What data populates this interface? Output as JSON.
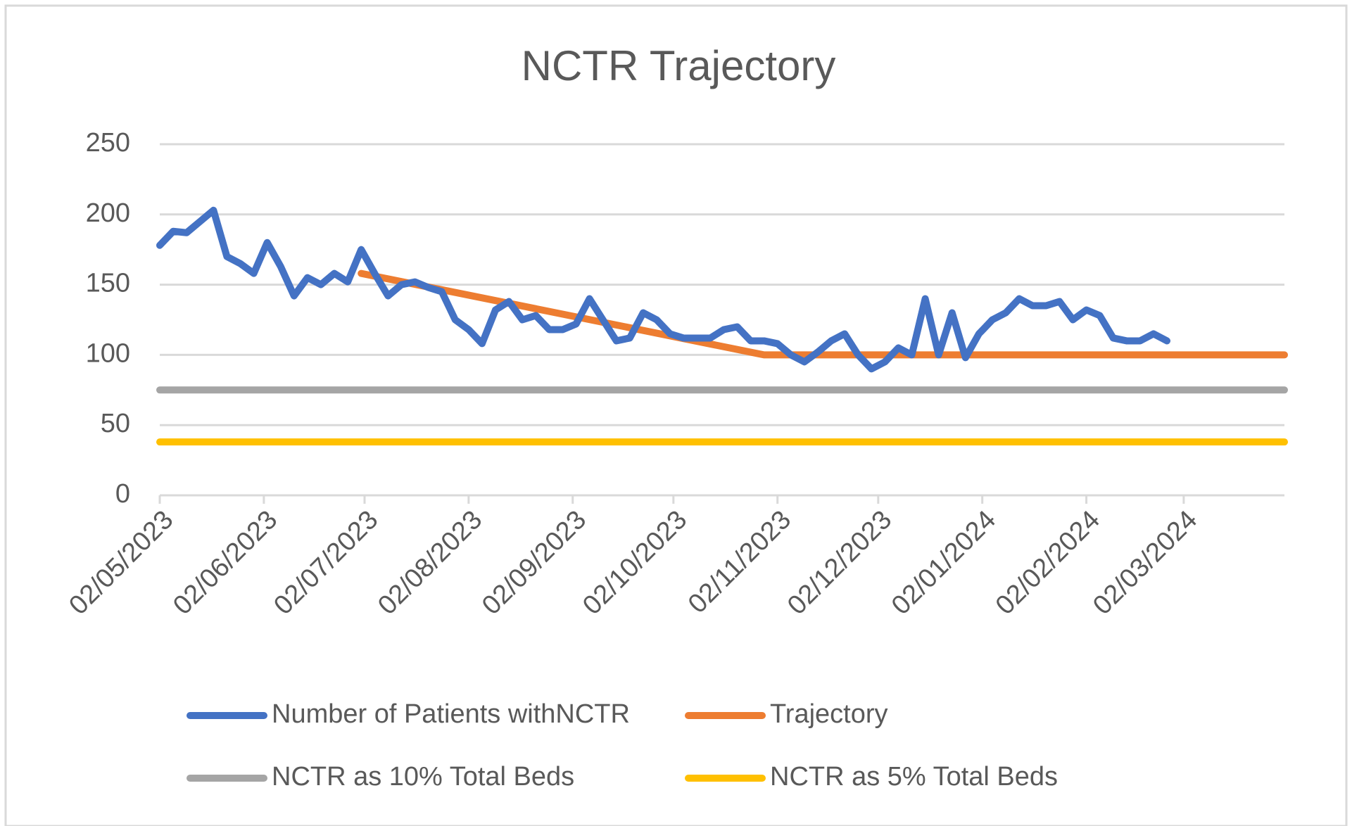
{
  "chart_data": {
    "type": "line",
    "title": "NCTR Trajectory",
    "xlim": [
      "02/05/2023",
      "01/04/2024"
    ],
    "xticks": [
      "02/05/2023",
      "02/06/2023",
      "02/07/2023",
      "02/08/2023",
      "02/09/2023",
      "02/10/2023",
      "02/11/2023",
      "02/12/2023",
      "02/01/2024",
      "02/02/2024",
      "02/03/2024"
    ],
    "ylim": [
      0,
      250
    ],
    "yticks": [
      0,
      50,
      100,
      150,
      200,
      250
    ],
    "grid": true,
    "legend": "bottom",
    "series": [
      {
        "name": "Number of Patients withNCTR",
        "color": "#4472c4",
        "x": [
          "02/05/2023",
          "06/05/2023",
          "10/05/2023",
          "14/05/2023",
          "18/05/2023",
          "22/05/2023",
          "26/05/2023",
          "30/05/2023",
          "03/06/2023",
          "07/06/2023",
          "11/06/2023",
          "15/06/2023",
          "19/06/2023",
          "23/06/2023",
          "27/06/2023",
          "01/07/2023",
          "05/07/2023",
          "09/07/2023",
          "13/07/2023",
          "17/07/2023",
          "21/07/2023",
          "25/07/2023",
          "29/07/2023",
          "02/08/2023",
          "06/08/2023",
          "10/08/2023",
          "14/08/2023",
          "18/08/2023",
          "22/08/2023",
          "26/08/2023",
          "30/08/2023",
          "03/09/2023",
          "07/09/2023",
          "11/09/2023",
          "15/09/2023",
          "19/09/2023",
          "23/09/2023",
          "27/09/2023",
          "01/10/2023",
          "05/10/2023",
          "09/10/2023",
          "13/10/2023",
          "17/10/2023",
          "21/10/2023",
          "25/10/2023",
          "29/10/2023",
          "02/11/2023",
          "06/11/2023",
          "10/11/2023",
          "14/11/2023",
          "18/11/2023",
          "22/11/2023",
          "26/11/2023",
          "30/11/2023",
          "04/12/2023",
          "08/12/2023",
          "12/12/2023",
          "16/12/2023",
          "20/12/2023",
          "24/12/2023",
          "28/12/2023",
          "01/01/2024",
          "05/01/2024",
          "09/01/2024",
          "13/01/2024",
          "17/01/2024",
          "21/01/2024",
          "25/01/2024",
          "29/01/2024",
          "02/02/2024",
          "06/02/2024",
          "10/02/2024",
          "14/02/2024",
          "18/02/2024",
          "22/02/2024",
          "26/02/2024"
        ],
        "values": [
          178,
          188,
          187,
          195,
          203,
          170,
          165,
          158,
          180,
          163,
          142,
          155,
          150,
          158,
          152,
          175,
          158,
          142,
          150,
          152,
          148,
          145,
          125,
          118,
          108,
          132,
          138,
          125,
          128,
          118,
          118,
          122,
          140,
          125,
          110,
          112,
          130,
          125,
          115,
          112,
          112,
          112,
          118,
          120,
          110,
          110,
          108,
          100,
          95,
          102,
          110,
          115,
          100,
          90,
          95,
          105,
          100,
          140,
          100,
          130,
          98,
          115,
          125,
          130,
          140,
          135,
          135,
          138,
          125,
          132,
          128,
          112,
          110,
          110,
          115,
          110
        ]
      },
      {
        "name": "Trajectory",
        "color": "#ed7d31",
        "x": [
          "01/07/2023",
          "29/10/2023",
          "01/04/2024"
        ],
        "values": [
          158,
          100,
          100
        ]
      },
      {
        "name": "NCTR as 10% Total Beds",
        "color": "#a5a5a5",
        "x": [
          "02/05/2023",
          "01/04/2024"
        ],
        "values": [
          75,
          75
        ]
      },
      {
        "name": "NCTR as 5% Total Beds",
        "color": "#ffc000",
        "x": [
          "02/05/2023",
          "01/04/2024"
        ],
        "values": [
          38,
          38
        ]
      }
    ]
  }
}
